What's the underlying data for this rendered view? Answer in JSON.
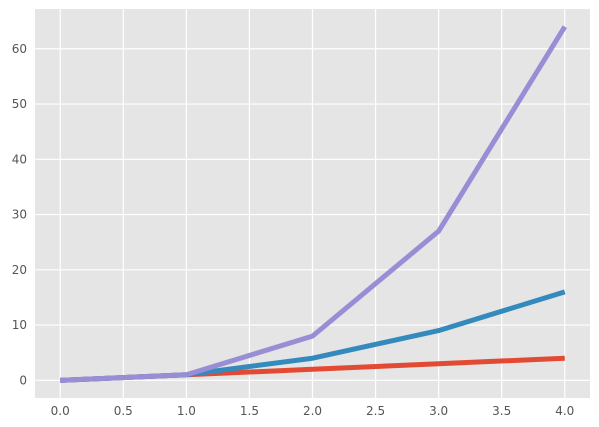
{
  "chart_data": {
    "type": "line",
    "title": "",
    "xlabel": "",
    "ylabel": "",
    "xlim": [
      -0.2,
      4.2
    ],
    "ylim": [
      -3.2,
      67.2
    ],
    "grid": true,
    "legend": "none",
    "background": "#e5e5e5",
    "x": [
      0,
      1,
      2,
      3,
      4
    ],
    "x_ticks": [
      0.0,
      0.5,
      1.0,
      1.5,
      2.0,
      2.5,
      3.0,
      3.5,
      4.0
    ],
    "x_tick_labels": [
      "0.0",
      "0.5",
      "1.0",
      "1.5",
      "2.0",
      "2.5",
      "3.0",
      "3.5",
      "4.0"
    ],
    "y_ticks": [
      0,
      10,
      20,
      30,
      40,
      50,
      60
    ],
    "y_tick_labels": [
      "0",
      "10",
      "20",
      "30",
      "40",
      "50",
      "60"
    ],
    "series": [
      {
        "color": "#e24a33",
        "values": [
          0,
          1,
          2,
          3,
          4
        ]
      },
      {
        "color": "#348abd",
        "values": [
          0,
          1,
          4,
          9,
          16
        ]
      },
      {
        "color": "#988ed5",
        "values": [
          0,
          1,
          8,
          27,
          64
        ]
      }
    ]
  }
}
